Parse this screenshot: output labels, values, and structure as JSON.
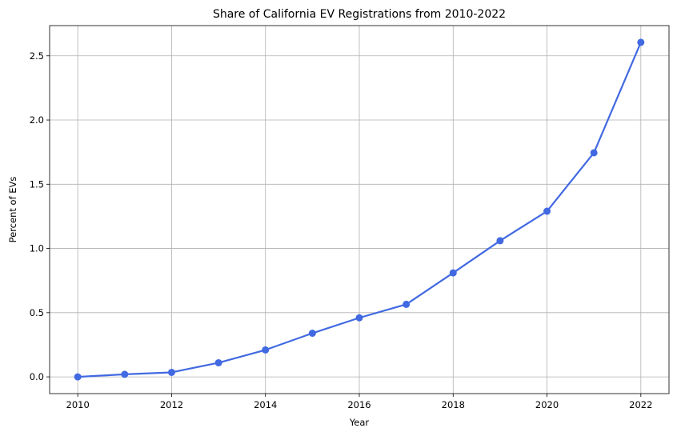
{
  "chart_data": {
    "type": "line",
    "title": "Share of California EV Registrations from 2010-2022",
    "xlabel": "Year",
    "ylabel": "Percent of EVs",
    "x": [
      2010,
      2011,
      2012,
      2013,
      2014,
      2015,
      2016,
      2017,
      2018,
      2019,
      2020,
      2021,
      2022
    ],
    "series": [
      {
        "values": [
          0.0,
          0.02,
          0.035,
          0.11,
          0.21,
          0.34,
          0.46,
          0.565,
          0.81,
          1.06,
          1.29,
          1.745,
          2.605
        ],
        "color": "#4169e1",
        "marker": "circle"
      }
    ],
    "xlim": [
      2009.4,
      2022.6
    ],
    "ylim": [
      -0.1302,
      2.7352
    ],
    "xticks": [
      2010,
      2012,
      2014,
      2016,
      2018,
      2020,
      2022
    ],
    "yticks": [
      0.0,
      0.5,
      1.0,
      1.5,
      2.0,
      2.5
    ],
    "ytick_labels": [
      "0.0",
      "0.5",
      "1.0",
      "1.5",
      "2.0",
      "2.5"
    ],
    "grid": true
  }
}
